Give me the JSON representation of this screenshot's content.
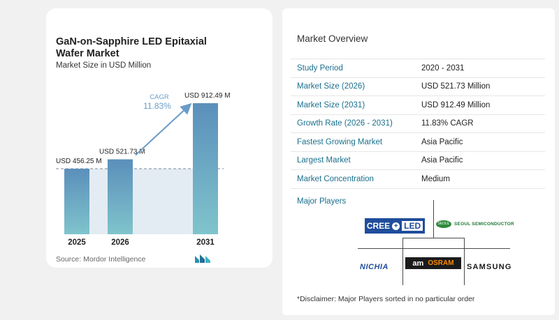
{
  "chart_data": {
    "type": "bar",
    "title": "GaN-on-Sapphire LED Epitaxial Wafer Market",
    "subtitle": "Market Size in USD Million",
    "categories": [
      "2025",
      "2026",
      "2031"
    ],
    "values": [
      456.25,
      521.73,
      912.49
    ],
    "data_labels": [
      "USD 456.25 M",
      "USD 521.73 M",
      "USD 912.49 M"
    ],
    "cagr_label": "CAGR",
    "cagr_value": "11.83%",
    "ylim": [
      0,
      1000
    ],
    "colors": {
      "bar_top": "#5b8fbb",
      "bar_bottom": "#7fc4cc",
      "arrow": "#6a9cc6",
      "cagr_text": "#6a9cc6",
      "baseline_fill": "#e4ecf3"
    }
  },
  "source": "Source:  Mordor Intelligence",
  "overview": {
    "title": "Market Overview",
    "rows": [
      {
        "label": "Study Period",
        "value": "2020 - 2031"
      },
      {
        "label": "Market Size (2026)",
        "value": "USD 521.73 Million"
      },
      {
        "label": "Market Size (2031)",
        "value": "USD 912.49 Million"
      },
      {
        "label": "Growth Rate (2026 - 2031)",
        "value": "11.83% CAGR"
      },
      {
        "label": "Fastest Growing Market",
        "value": "Asia Pacific"
      },
      {
        "label": "Largest Market",
        "value": "Asia Pacific"
      },
      {
        "label": "Market Concentration",
        "value": "Medium"
      }
    ]
  },
  "players": {
    "title": "Major Players",
    "logos": {
      "cree": {
        "left": "CREE",
        "right": "LED"
      },
      "seoul": {
        "badge": "SEOUL",
        "text": "SEOUL SEMICONDUCTOR"
      },
      "nichia": "NICHIA",
      "ams": "am",
      "osram": "OSRAM",
      "samsung": "SAMSUNG"
    }
  },
  "disclaimer": "*Disclaimer: Major Players sorted in no particular order"
}
